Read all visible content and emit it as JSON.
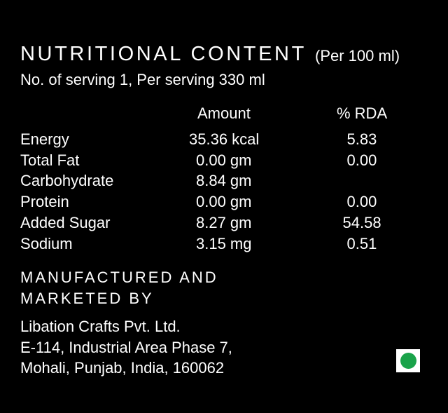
{
  "header": {
    "title": "NUTRITIONAL CONTENT",
    "basis": "(Per 100 ml)",
    "serving": "No. of serving 1, Per serving 330 ml"
  },
  "table": {
    "columns": [
      "Amount",
      "% RDA"
    ],
    "rows": [
      {
        "name": "Energy",
        "amount": "35.36 kcal",
        "rda": "5.83"
      },
      {
        "name": "Total Fat",
        "amount": "0.00 gm",
        "rda": "0.00"
      },
      {
        "name": "Carbohydrate",
        "amount": "8.84 gm"
      },
      {
        "name": "Protein",
        "amount": "0.00 gm",
        "rda": "0.00"
      },
      {
        "name": "Added Sugar",
        "amount": "8.27 gm",
        "rda": "54.58"
      },
      {
        "name": "Sodium",
        "amount": "3.15 mg",
        "rda": "0.51"
      }
    ]
  },
  "manufacturer": {
    "heading": [
      "MANUFACTURED AND",
      "MARKETED BY"
    ],
    "address": [
      "Libation Crafts Pvt. Ltd.",
      "E-114, Industrial Area Phase 7,",
      "Mohali, Punjab, India, 160062"
    ]
  }
}
